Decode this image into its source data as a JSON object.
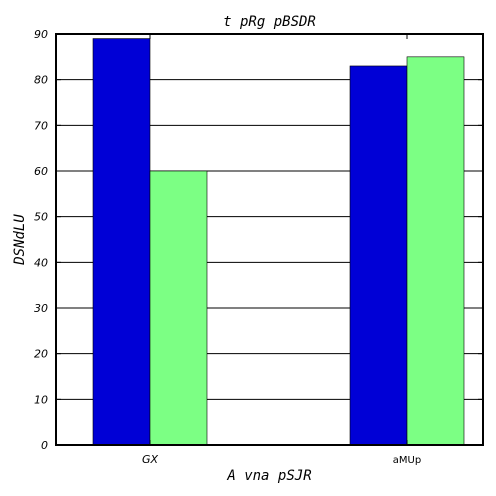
{
  "chart_data": {
    "type": "bar",
    "title": "t pRg pBSDR",
    "xlabel": "A   vna pSJR",
    "ylabel": "DSNdLU",
    "categories": [
      "GX",
      "aMUp"
    ],
    "series": [
      {
        "values": [
          89,
          83
        ],
        "color": "#0000d6"
      },
      {
        "values": [
          60,
          85
        ],
        "color": "#7cff84"
      }
    ],
    "ylim": [
      0,
      90
    ],
    "yticks": [
      0,
      10,
      20,
      30,
      40,
      50,
      60,
      70,
      80,
      90
    ],
    "grid": true
  }
}
